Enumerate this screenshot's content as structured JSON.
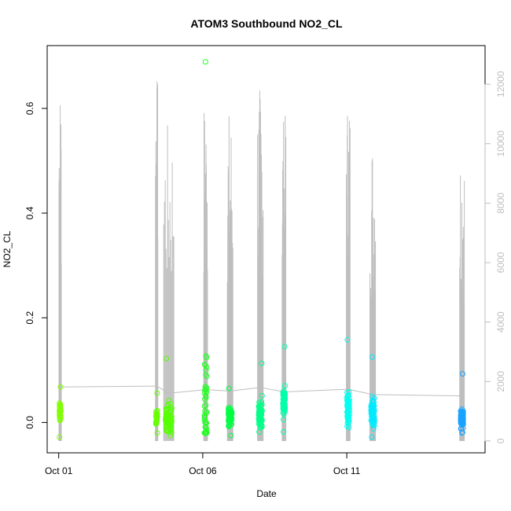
{
  "chart_data": {
    "type": "scatter",
    "title": "ATOM3 Southbound NO2_CL",
    "xlabel": "Date",
    "ylabel": "NO2_CL",
    "ylabel_right": "",
    "x_ticks": [
      "Oct 01",
      "Oct 06",
      "Oct 11"
    ],
    "x_tick_days": [
      1,
      6,
      11
    ],
    "xlim": [
      0.6,
      15.8
    ],
    "ylim": [
      -0.058,
      0.72
    ],
    "y_ticks": [
      0.0,
      0.2,
      0.4,
      0.6
    ],
    "y_tick_labels": [
      "0.0",
      "0.2",
      "0.4",
      "0.6"
    ],
    "y2lim": [
      -400,
      13300
    ],
    "y2_ticks": [
      0,
      2000,
      4000,
      6000,
      8000,
      10000,
      12000
    ],
    "y2_tick_labels": [
      "0",
      "2000",
      "4000",
      "6000",
      "8000",
      "10000",
      "12000"
    ],
    "grid": false,
    "colors": {
      "line": "#bebebe",
      "axis": "#000000",
      "right_axis": "#bebebe"
    },
    "clusters": [
      {
        "day": 1.05,
        "spread": 0.05,
        "center": 0.021,
        "min": -0.028,
        "max": 0.068,
        "count": 32,
        "color": "#80ff00",
        "y2_peak": 12100
      },
      {
        "day": 4.4,
        "spread": 0.05,
        "center": 0.01,
        "min": -0.02,
        "max": 0.056,
        "count": 26,
        "color": "#66ff00",
        "y2_peak": 12300
      },
      {
        "day": 4.82,
        "spread": 0.22,
        "center": 0.01,
        "min": -0.025,
        "max": 0.122,
        "count": 80,
        "color": "#55ff00",
        "y2_peak": 10700
      },
      {
        "day": 6.1,
        "spread": 0.08,
        "center": 0.025,
        "min": -0.02,
        "max": 0.689,
        "count": 46,
        "color": "#22ff22",
        "y2_peak": 11500
      },
      {
        "day": 6.95,
        "spread": 0.12,
        "center": 0.012,
        "min": -0.025,
        "max": 0.065,
        "count": 70,
        "color": "#00ff44",
        "y2_peak": 11200
      },
      {
        "day": 8.0,
        "spread": 0.12,
        "center": 0.018,
        "min": -0.018,
        "max": 0.113,
        "count": 60,
        "color": "#00ff88",
        "y2_peak": 12000
      },
      {
        "day": 8.82,
        "spread": 0.08,
        "center": 0.04,
        "min": -0.018,
        "max": 0.145,
        "count": 52,
        "color": "#00ffaa",
        "y2_peak": 11000
      },
      {
        "day": 11.05,
        "spread": 0.08,
        "center": 0.03,
        "min": -0.01,
        "max": 0.158,
        "count": 60,
        "color": "#00ffee",
        "y2_peak": 11600
      },
      {
        "day": 11.9,
        "spread": 0.12,
        "center": 0.018,
        "min": -0.028,
        "max": 0.125,
        "count": 64,
        "color": "#00eaff",
        "y2_peak": 10400
      },
      {
        "day": 15.0,
        "spread": 0.1,
        "center": 0.008,
        "min": -0.02,
        "max": 0.093,
        "count": 72,
        "color": "#1aa3ff",
        "y2_peak": 10100
      }
    ]
  }
}
